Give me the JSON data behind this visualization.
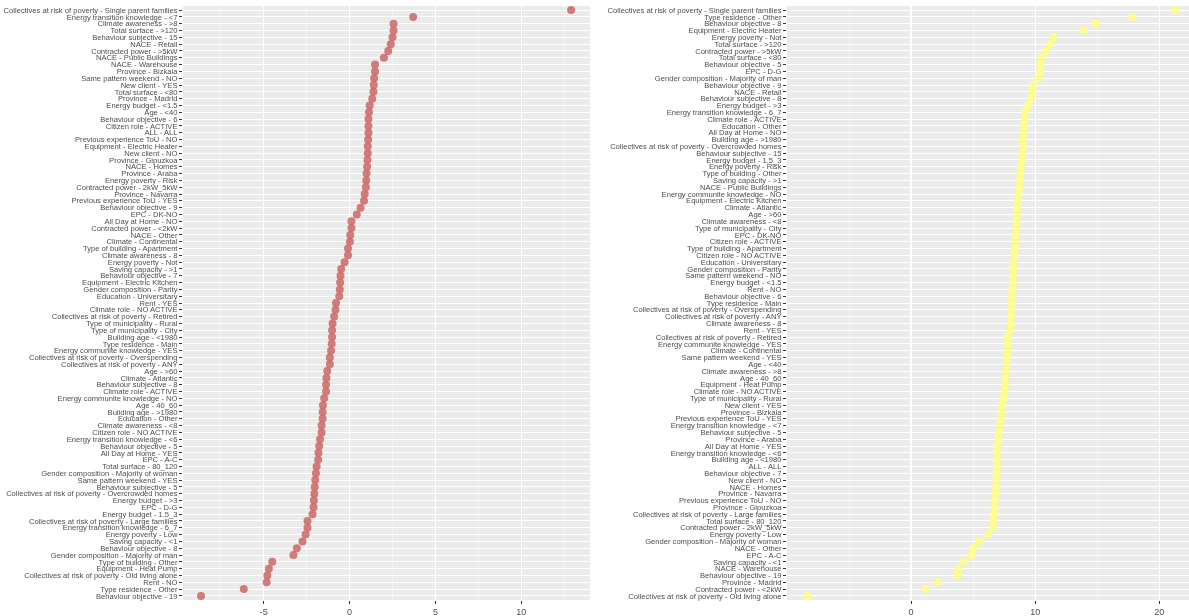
{
  "chart_data": [
    {
      "type": "scatter",
      "orientation": "horizontal",
      "marker": "circle",
      "grid": true,
      "color": "#cd6666",
      "xlim": [
        -9.7,
        14
      ],
      "xticks": [
        -5,
        0,
        5,
        10
      ],
      "categories": [
        "Collectives at risk of poverty - Single parent families",
        "Energy transition knowledge - <7",
        "Climate awareness - >8",
        "Total surface - >120",
        "Behaviour subjective - 15",
        "NACE - Retail",
        "Contracted power - >5kW",
        "NACE - Public Buildings",
        "NACE - Warehouse",
        "Province - Bizkaia",
        "Same pattern weekend - NO",
        "New client - YES",
        "Total surface - <80",
        "Province - Madrid",
        "Energy budget - <1.5",
        "Age - <40",
        "Behaviour objective - 6",
        "Citizen role - ACTIVE",
        "ALL - ALL",
        "Previous experience ToU - NO",
        "Equipment - Electric Heater",
        "New client - NO",
        "Province - Gipuzkoa",
        "NACE - Homes",
        "Province - Araba",
        "Energy poverty - Risk",
        "Contracted power - 2kW_5kW",
        "Province - Navarra",
        "Previous experience ToU - YES",
        "Behaviour objective - 9",
        "EPC - DK-NO",
        "All Day at Home - NO",
        "Contracted power - <2kW",
        "NACE - Other",
        "Climate - Continental",
        "Type of building - Apartment",
        "Climate awareness - 8",
        "Energy poverty - Not",
        "Saving capacity - >1",
        "Behaviour objective - 7",
        "Equipment - Electric Kitchen",
        "Gender composition - Parity",
        "Education - Universitary",
        "Rent - YES",
        "Climate role - NO ACTIVE",
        "Collectives at risk of poverty - Retired",
        "Type of municipality - Rural",
        "Type of municipality - City",
        "Building age - <1980",
        "Type residence - Main",
        "Energy communite knowledge - YES",
        "Collectives at risk of poverty - Overspending",
        "Collectives at risk of poverty - ANY",
        "Age - >60",
        "Climate - Atlantic",
        "Behaviour subjective - 8",
        "Climate role - ACTIVE",
        "Energy communite knowledge - NO",
        "Age - 40_60",
        "Building age - >1980",
        "Education - Other",
        "Climate awareness - <8",
        "Citizen role - NO ACTIVE",
        "Energy transition knowledge - <6",
        "Behaviour objective - 5",
        "All Day at Home - YES",
        "EPC - A-C",
        "Total surface - 80_120",
        "Gender composition - Majority of woman",
        "Same pattern weekend - YES",
        "Behaviour subjective - 5",
        "Collectives at risk of poverty - Overcrowded homes",
        "Energy budget - >3",
        "EPC - D-G",
        "Energy budget - 1.5_3",
        "Collectives at risk of poverty - Large families",
        "Energy transition knowledge - 6_7",
        "Energy poverty - Low",
        "Saving capacity - <1",
        "Behaviour objective - 8",
        "Gender composition - Majority of man",
        "Type of building - Other",
        "Equipment - Heat Pump",
        "Collectives at risk of poverty - Old living alone",
        "Rent - NO",
        "Type residence - Other",
        "Behaviour objective - 19"
      ],
      "values": [
        12.9,
        3.7,
        2.56,
        2.56,
        2.5,
        2.4,
        2.25,
        2.0,
        1.48,
        1.48,
        1.43,
        1.41,
        1.39,
        1.32,
        1.17,
        1.13,
        1.1,
        1.1,
        1.1,
        1.08,
        1.06,
        1.06,
        1.04,
        1.02,
        0.99,
        0.97,
        0.95,
        0.88,
        0.84,
        0.64,
        0.42,
        0.11,
        0.11,
        0.04,
        0.02,
        -0.09,
        -0.09,
        -0.29,
        -0.49,
        -0.53,
        -0.55,
        -0.57,
        -0.6,
        -0.79,
        -0.82,
        -0.9,
        -0.99,
        -1.02,
        -1.02,
        -1.04,
        -1.08,
        -1.15,
        -1.15,
        -1.3,
        -1.35,
        -1.37,
        -1.37,
        -1.48,
        -1.55,
        -1.57,
        -1.57,
        -1.63,
        -1.63,
        -1.72,
        -1.77,
        -1.81,
        -1.83,
        -1.92,
        -1.96,
        -2.0,
        -2.03,
        -2.05,
        -2.08,
        -2.1,
        -2.16,
        -2.45,
        -2.45,
        -2.56,
        -2.74,
        -3.07,
        -3.27,
        -4.5,
        -4.7,
        -4.79,
        -4.83,
        -6.16,
        -8.65
      ]
    },
    {
      "type": "scatter",
      "orientation": "horizontal",
      "marker": "circle",
      "grid": true,
      "color": "#ffff80",
      "xlim": [
        -10,
        22.4
      ],
      "xticks": [
        0,
        10,
        20
      ],
      "categories": [
        "Collectives at risk of poverty - Single parent families",
        "Type residence - Other",
        "Behaviour objective - 8",
        "Equipment - Electric Heater",
        "Energy poverty - Not",
        "Total surface - >120",
        "Contracted power - >5kW",
        "Total surface - <80",
        "Behaviour objective - 5",
        "EPC - D-G",
        "Gender composition - Majority of man",
        "Behaviour objective - 9",
        "NACE - Retail",
        "Behaviour subjective - 8",
        "Energy budget - >3",
        "Energy transition knowledge - 6_7",
        "Climate role - ACTIVE",
        "Education - Other",
        "All Day at Home - NO",
        "Building age - >1980",
        "Collectives at risk of poverty - Overcrowded homes",
        "Behaviour subjective - 15",
        "Energy budget - 1.5_3",
        "Energy poverty - Risk",
        "Type of building - Other",
        "Saving capacity - >1",
        "NACE - Public Buildings",
        "Energy communite knowledge - NO",
        "Equipment - Electric Kitchen",
        "Climate - Atlantic",
        "Age - >60",
        "Climate awareness - <8",
        "Type of municipality - City",
        "EPC - DK-NO",
        "Citizen role - ACTIVE",
        "Type of building - Apartment",
        "Citizen role - NO ACTIVE",
        "Education - Universitary",
        "Gender composition - Parity",
        "Same pattern weekend - NO",
        "Energy budget - <1.5",
        "Rent - NO",
        "Behaviour objective - 6",
        "Type residence - Main",
        "Collectives at risk of poverty - Overspending",
        "Collectives at risk of poverty - ANY",
        "Climate awareness - 8",
        "Rent - YES",
        "Collectives at risk of poverty - Retired",
        "Energy communite knowledge - YES",
        "Climate - Continental",
        "Same pattern weekend - YES",
        "Age - <40",
        "Climate awareness - >8",
        "Age - 40_60",
        "Equipment - Heat Pump",
        "Climate role - NO ACTIVE",
        "Type of municipality - Rural",
        "New client - YES",
        "Province - Bizkaia",
        "Previous experience ToU - YES",
        "Energy transition knowledge - <7",
        "Behaviour subjective - 5",
        "Province - Araba",
        "All Day at Home - YES",
        "Energy transition knowledge - <6",
        "Building age - <1980",
        "ALL - ALL",
        "Behaviour objective - 7",
        "New client - NO",
        "NACE - Homes",
        "Province - Navarra",
        "Previous experience ToU - NO",
        "Province - Gipuzkoa",
        "Collectives at risk of poverty - Large families",
        "Total surface - 80_120",
        "Contracted power - 2kW_5kW",
        "Energy poverty - Low",
        "Gender composition - Majority of woman",
        "NACE - Other",
        "EPC - A-C",
        "Saving capacity - <1",
        "NACE - Warehouse",
        "Behaviour objective - 19",
        "Province - Madrid",
        "Contracted power - <2kW",
        "Collectives at risk of poverty - Old living alone"
      ],
      "values": [
        21.3,
        17.85,
        14.86,
        13.86,
        11.47,
        11.2,
        10.86,
        10.47,
        10.44,
        10.41,
        10.26,
        9.83,
        9.74,
        9.65,
        9.44,
        9.2,
        9.14,
        9.1,
        9.05,
        9.0,
        9.0,
        8.96,
        8.93,
        8.87,
        8.8,
        8.75,
        8.72,
        8.65,
        8.62,
        8.56,
        8.53,
        8.5,
        8.47,
        8.44,
        8.38,
        8.35,
        8.32,
        8.29,
        8.26,
        8.23,
        8.2,
        8.17,
        8.14,
        8.11,
        8.08,
        8.05,
        8.02,
        7.99,
        7.78,
        7.78,
        7.75,
        7.72,
        7.69,
        7.66,
        7.62,
        7.56,
        7.53,
        7.44,
        7.32,
        7.32,
        7.23,
        7.14,
        7.08,
        7.02,
        6.99,
        6.96,
        6.93,
        6.93,
        6.9,
        6.87,
        6.87,
        6.81,
        6.75,
        6.72,
        6.69,
        6.66,
        6.57,
        6.2,
        5.5,
        5.05,
        4.87,
        4.27,
        3.81,
        3.72,
        2.15,
        1.15,
        -8.35
      ]
    }
  ]
}
